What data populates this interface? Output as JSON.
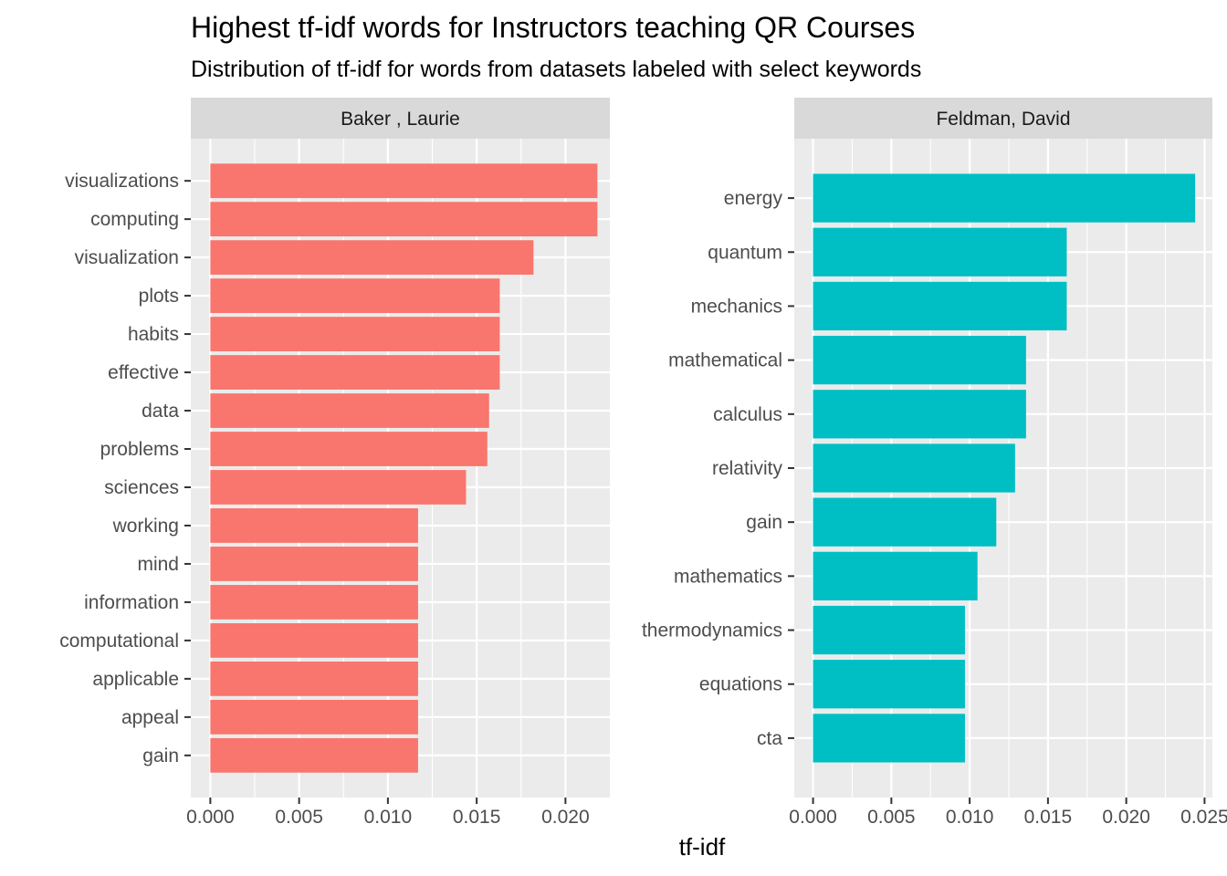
{
  "chart_data": {
    "type": "bar",
    "orientation": "horizontal",
    "title": "Highest tf-idf words for Instructors teaching QR Courses",
    "subtitle": "Distribution of tf-idf for words from datasets labeled with select keywords",
    "xlabel": "tf-idf",
    "grid": true,
    "legend": "none",
    "facets": [
      {
        "name": "Baker , Laurie",
        "color": "#F8766D",
        "xlim": [
          -0.0011,
          0.0225
        ],
        "ticks": [
          {
            "value": 0.0,
            "label": "0.000"
          },
          {
            "value": 0.005,
            "label": "0.005"
          },
          {
            "value": 0.01,
            "label": "0.010"
          },
          {
            "value": 0.015,
            "label": "0.015"
          },
          {
            "value": 0.02,
            "label": "0.020"
          }
        ],
        "categories": [
          "visualizations",
          "computing",
          "visualization",
          "plots",
          "habits",
          "effective",
          "data",
          "problems",
          "sciences",
          "working",
          "mind",
          "information",
          "computational",
          "applicable",
          "appeal",
          "gain"
        ],
        "values": [
          0.0218,
          0.0218,
          0.0182,
          0.0163,
          0.0163,
          0.0163,
          0.0157,
          0.0156,
          0.0144,
          0.0117,
          0.0117,
          0.0117,
          0.0117,
          0.0117,
          0.0117,
          0.0117
        ]
      },
      {
        "name": "Feldman, David",
        "color": "#00BFC4",
        "xlim": [
          -0.0012,
          0.0255
        ],
        "ticks": [
          {
            "value": 0.0,
            "label": "0.000"
          },
          {
            "value": 0.005,
            "label": "0.005"
          },
          {
            "value": 0.01,
            "label": "0.010"
          },
          {
            "value": 0.015,
            "label": "0.015"
          },
          {
            "value": 0.02,
            "label": "0.020"
          },
          {
            "value": 0.025,
            "label": "0.025"
          }
        ],
        "categories": [
          "energy",
          "quantum",
          "mechanics",
          "mathematical",
          "calculus",
          "relativity",
          "gain",
          "mathematics",
          "thermodynamics",
          "equations",
          "cta"
        ],
        "values": [
          0.0244,
          0.0162,
          0.0162,
          0.0136,
          0.0136,
          0.0129,
          0.0117,
          0.0105,
          0.0097,
          0.0097,
          0.0097
        ]
      }
    ]
  }
}
